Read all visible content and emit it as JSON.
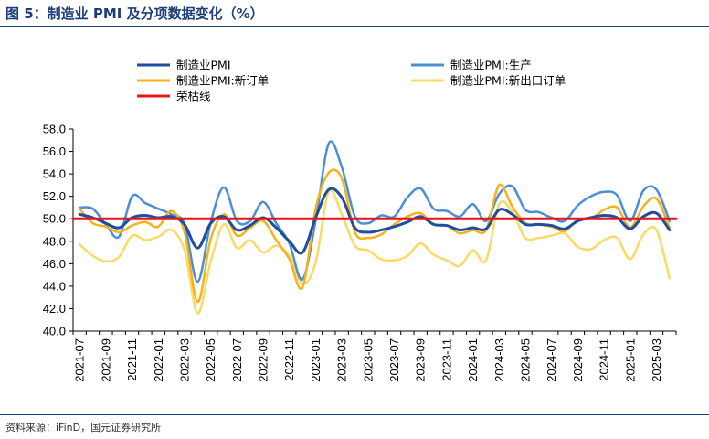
{
  "title": "图 5：制造业 PMI 及分项数据变化（%）",
  "source": "资料来源：iFinD，国元证券研究所",
  "chart_data": {
    "type": "line",
    "title": "",
    "xlabel": "",
    "ylabel": "",
    "ylim": [
      40,
      58
    ],
    "yticks": [
      "40.0",
      "42.0",
      "44.0",
      "46.0",
      "48.0",
      "50.0",
      "52.0",
      "54.0",
      "56.0",
      "58.0"
    ],
    "x": [
      "2021-07",
      "2021-08",
      "2021-09",
      "2021-10",
      "2021-11",
      "2021-12",
      "2022-01",
      "2022-02",
      "2022-03",
      "2022-04",
      "2022-05",
      "2022-06",
      "2022-07",
      "2022-08",
      "2022-09",
      "2022-10",
      "2022-11",
      "2022-12",
      "2023-01",
      "2023-02",
      "2023-03",
      "2023-04",
      "2023-05",
      "2023-06",
      "2023-07",
      "2023-08",
      "2023-09",
      "2023-10",
      "2023-11",
      "2023-12",
      "2024-01",
      "2024-02",
      "2024-03",
      "2024-04",
      "2024-05",
      "2024-06",
      "2024-07",
      "2024-08",
      "2024-09",
      "2024-10",
      "2024-11",
      "2024-12",
      "2025-01",
      "2025-02",
      "2025-03",
      "2025-04"
    ],
    "xtick_labels": [
      "2021-07",
      "2021-09",
      "2021-11",
      "2022-01",
      "2022-03",
      "2022-05",
      "2022-07",
      "2022-09",
      "2022-11",
      "2023-01",
      "2023-03",
      "2023-05",
      "2023-07",
      "2023-09",
      "2023-11",
      "2024-01",
      "2024-03",
      "2024-05",
      "2024-07",
      "2024-09",
      "2024-11",
      "2025-01",
      "2025-03"
    ],
    "legend_position": "top",
    "series": [
      {
        "name": "制造业PMI",
        "color": "#1f4e9c",
        "width": 3,
        "values": [
          50.4,
          50.1,
          49.6,
          49.2,
          50.1,
          50.3,
          50.1,
          50.2,
          49.5,
          47.4,
          49.6,
          50.2,
          49.0,
          49.4,
          50.1,
          49.2,
          48.0,
          47.0,
          50.1,
          52.6,
          51.9,
          49.2,
          48.8,
          49.0,
          49.3,
          49.7,
          50.2,
          49.5,
          49.4,
          49.0,
          49.2,
          49.1,
          50.8,
          50.4,
          49.5,
          49.5,
          49.4,
          49.1,
          49.8,
          50.1,
          50.3,
          50.1,
          49.1,
          50.2,
          50.5,
          49.0
        ]
      },
      {
        "name": "制造业PMI:生产",
        "color": "#4a8fd6",
        "width": 2.5,
        "values": [
          51.0,
          50.9,
          49.5,
          48.4,
          52.0,
          51.4,
          50.9,
          50.4,
          49.5,
          44.4,
          49.7,
          52.8,
          49.8,
          49.8,
          51.5,
          49.6,
          47.8,
          44.6,
          49.8,
          56.7,
          54.6,
          50.2,
          49.6,
          50.3,
          50.2,
          51.9,
          52.7,
          50.9,
          50.7,
          50.2,
          51.3,
          49.8,
          52.2,
          52.9,
          50.8,
          50.6,
          50.1,
          49.8,
          51.2,
          52.0,
          52.4,
          52.1,
          49.8,
          52.5,
          52.6,
          49.8
        ]
      },
      {
        "name": "制造业PMI:新订单",
        "color": "#f5b21c",
        "width": 2.5,
        "values": [
          50.9,
          49.6,
          49.3,
          48.8,
          49.4,
          49.7,
          49.3,
          50.7,
          48.8,
          42.6,
          48.2,
          50.4,
          48.5,
          49.2,
          49.8,
          48.1,
          46.4,
          43.9,
          50.9,
          54.1,
          53.6,
          48.8,
          48.3,
          48.6,
          49.5,
          50.2,
          50.5,
          49.5,
          49.4,
          48.7,
          49.0,
          49.0,
          53.0,
          51.1,
          49.6,
          49.5,
          49.3,
          48.9,
          49.9,
          50.0,
          50.8,
          51.0,
          49.2,
          51.1,
          51.8,
          49.2
        ]
      },
      {
        "name": "制造业PMI:新出口订单",
        "color": "#fbd966",
        "width": 2.5,
        "values": [
          47.7,
          46.7,
          46.2,
          46.6,
          48.5,
          48.1,
          48.4,
          49.0,
          47.2,
          41.6,
          46.2,
          49.5,
          47.4,
          48.1,
          47.0,
          47.6,
          46.7,
          44.2,
          46.1,
          52.4,
          50.4,
          47.6,
          47.2,
          46.4,
          46.3,
          46.7,
          47.8,
          46.8,
          46.3,
          45.8,
          47.2,
          46.3,
          51.3,
          50.6,
          48.3,
          48.3,
          48.5,
          48.7,
          47.5,
          47.3,
          48.1,
          48.3,
          46.4,
          48.6,
          49.0,
          44.7
        ]
      },
      {
        "name": "荣枯线",
        "color": "#e8141d",
        "width": 3,
        "values": [
          50,
          50,
          50,
          50,
          50,
          50,
          50,
          50,
          50,
          50,
          50,
          50,
          50,
          50,
          50,
          50,
          50,
          50,
          50,
          50,
          50,
          50,
          50,
          50,
          50,
          50,
          50,
          50,
          50,
          50,
          50,
          50,
          50,
          50,
          50,
          50,
          50,
          50,
          50,
          50,
          50,
          50,
          50,
          50,
          50,
          50
        ]
      }
    ]
  }
}
